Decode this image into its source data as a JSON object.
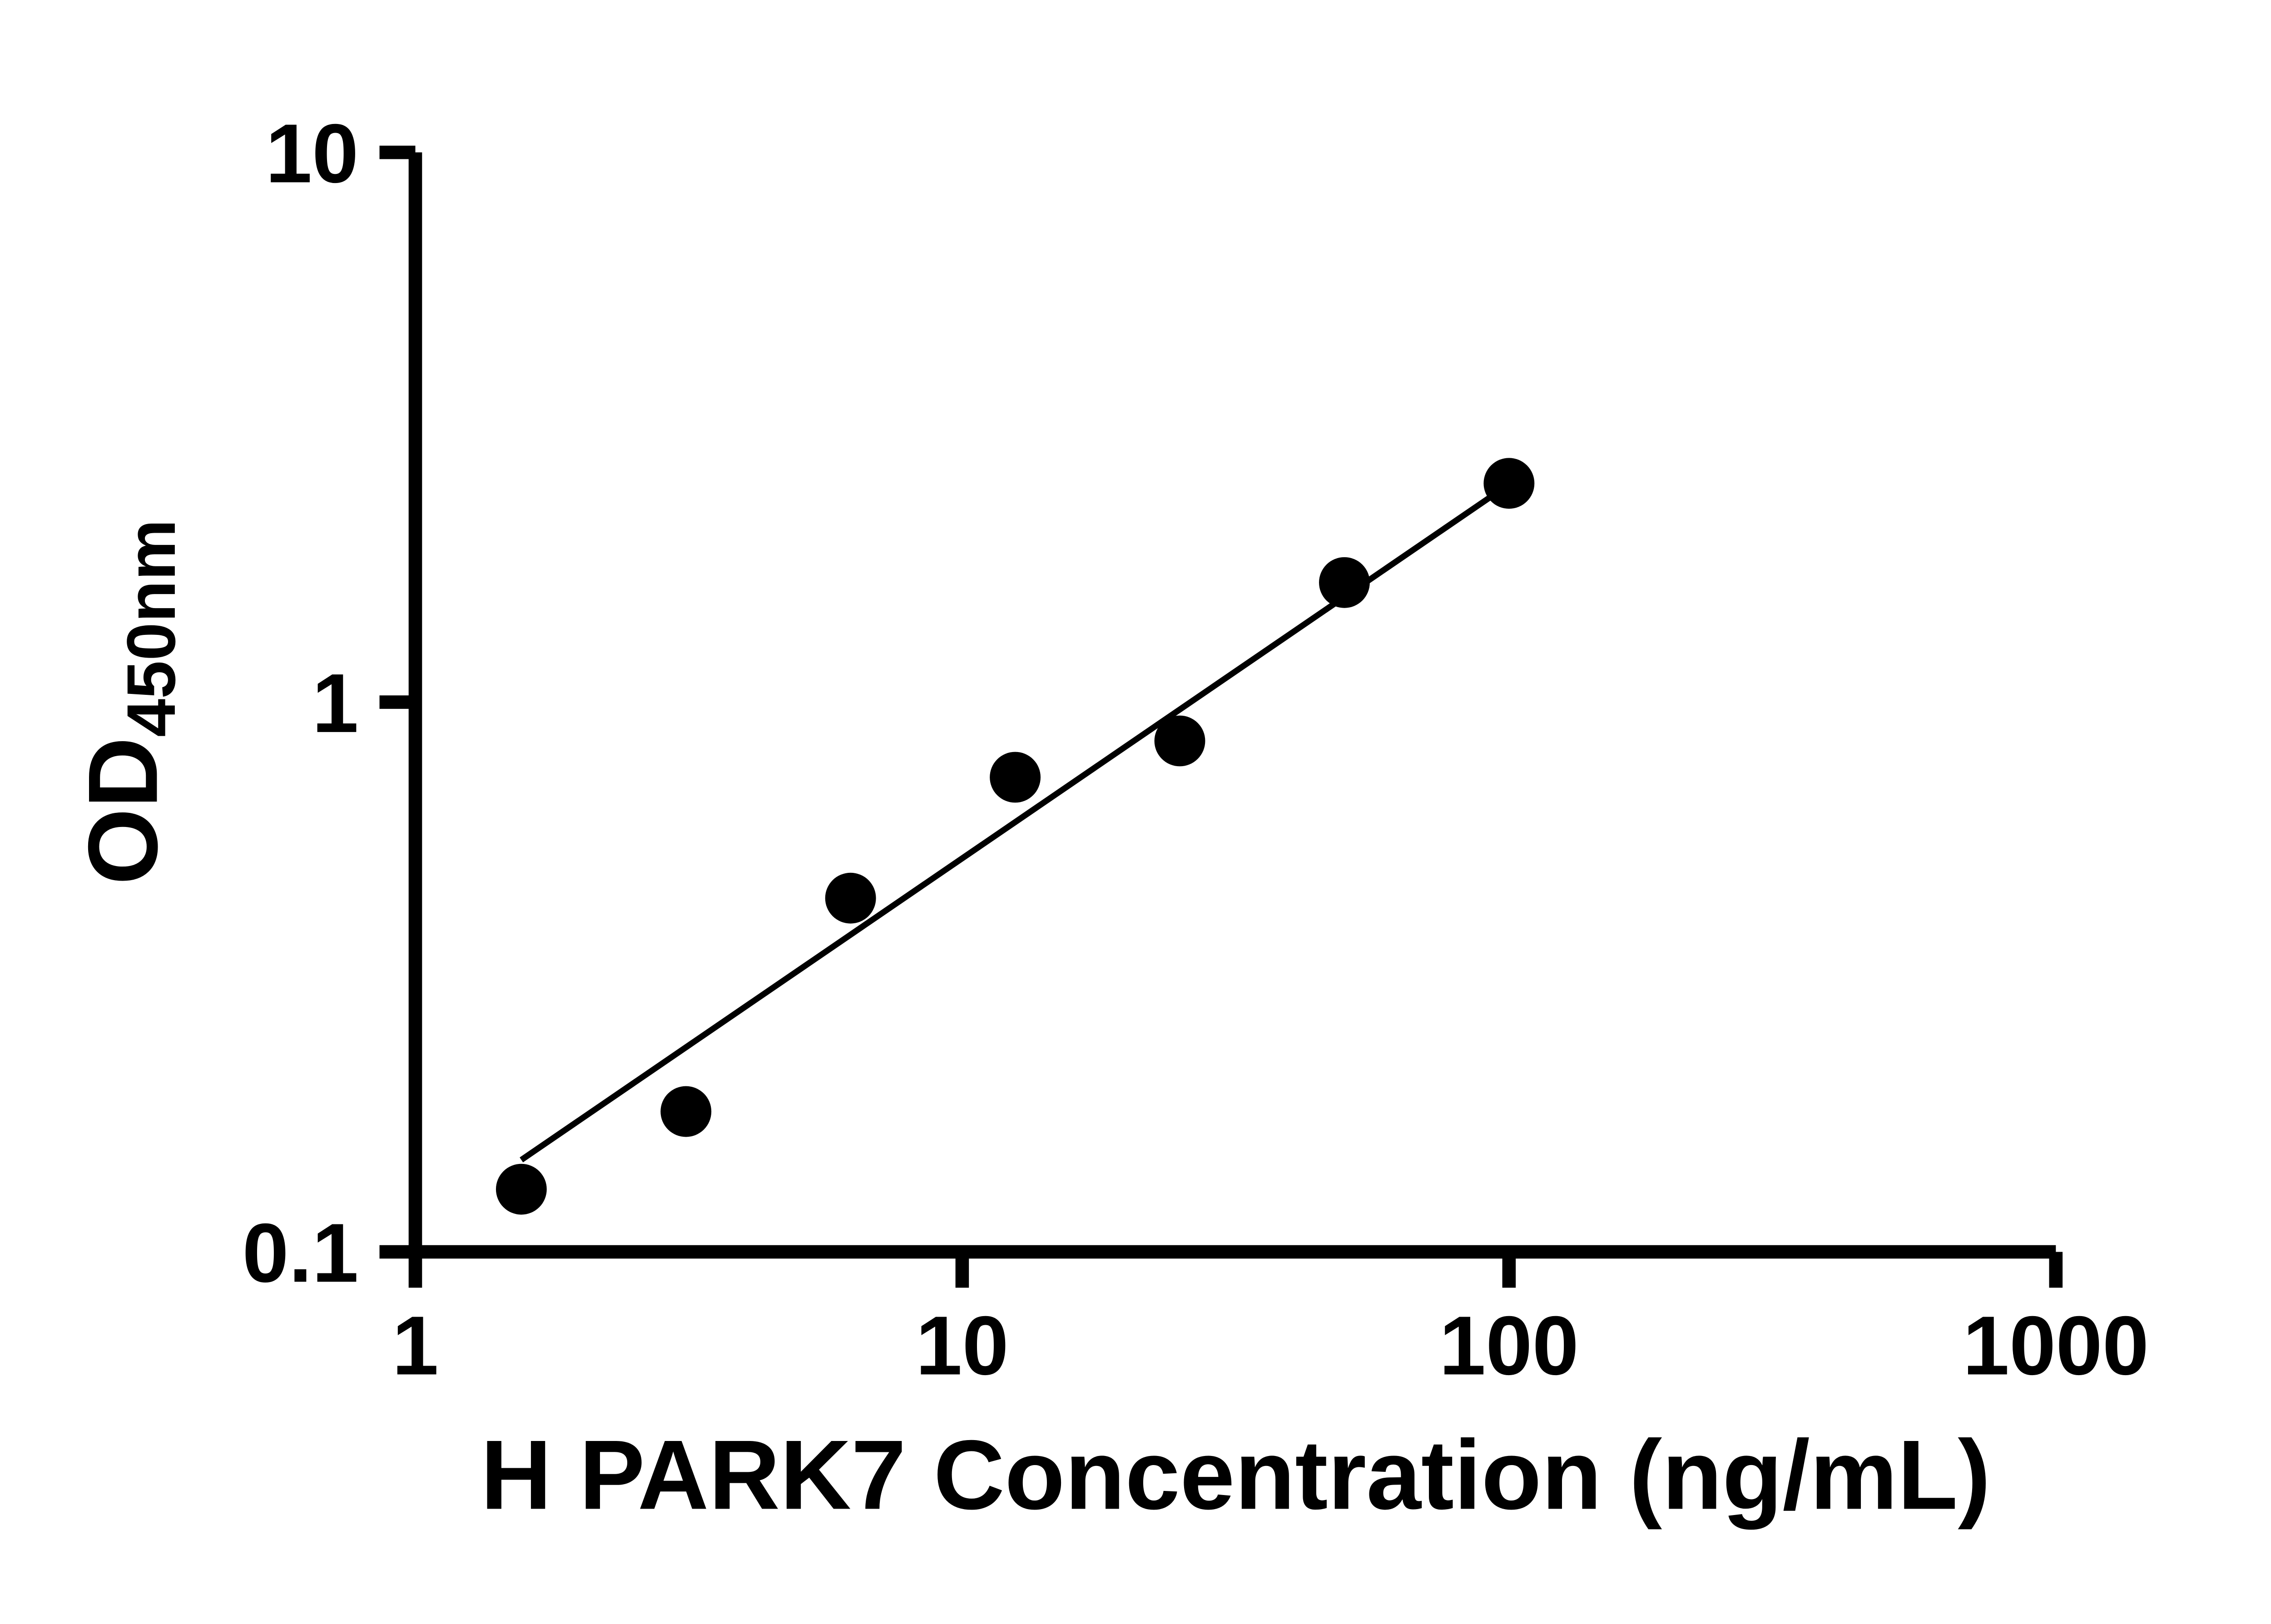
{
  "chart_data": {
    "type": "scatter",
    "title": "",
    "xlabel": "H PARK7 Concentration (ng/mL)",
    "ylabel_main": "OD",
    "ylabel_sub": "450nm",
    "x_scale": "log",
    "y_scale": "log",
    "xlim": [
      1,
      1000
    ],
    "ylim": [
      0.1,
      10
    ],
    "x_ticks": [
      1,
      10,
      100,
      1000
    ],
    "x_tick_labels": [
      "1",
      "10",
      "100",
      "1000"
    ],
    "y_ticks": [
      0.1,
      1,
      10
    ],
    "y_tick_labels": [
      "0.1",
      "1",
      "10"
    ],
    "grid": false,
    "legend": false,
    "series": [
      {
        "name": "fit-line",
        "type": "line",
        "x": [
          1.5625,
          100
        ],
        "y": [
          0.147,
          2.49
        ],
        "line_color": "#000000"
      },
      {
        "name": "standard-curve-points",
        "type": "scatter",
        "x": [
          1.5625,
          3.125,
          6.25,
          12.5,
          25,
          50,
          100
        ],
        "y": [
          0.13,
          0.18,
          0.44,
          0.73,
          0.85,
          1.65,
          2.5
        ],
        "marker_color": "#000000"
      }
    ],
    "colors": {
      "points": "#000000",
      "line": "#000000",
      "axis": "#000000",
      "background": "#ffffff"
    }
  }
}
